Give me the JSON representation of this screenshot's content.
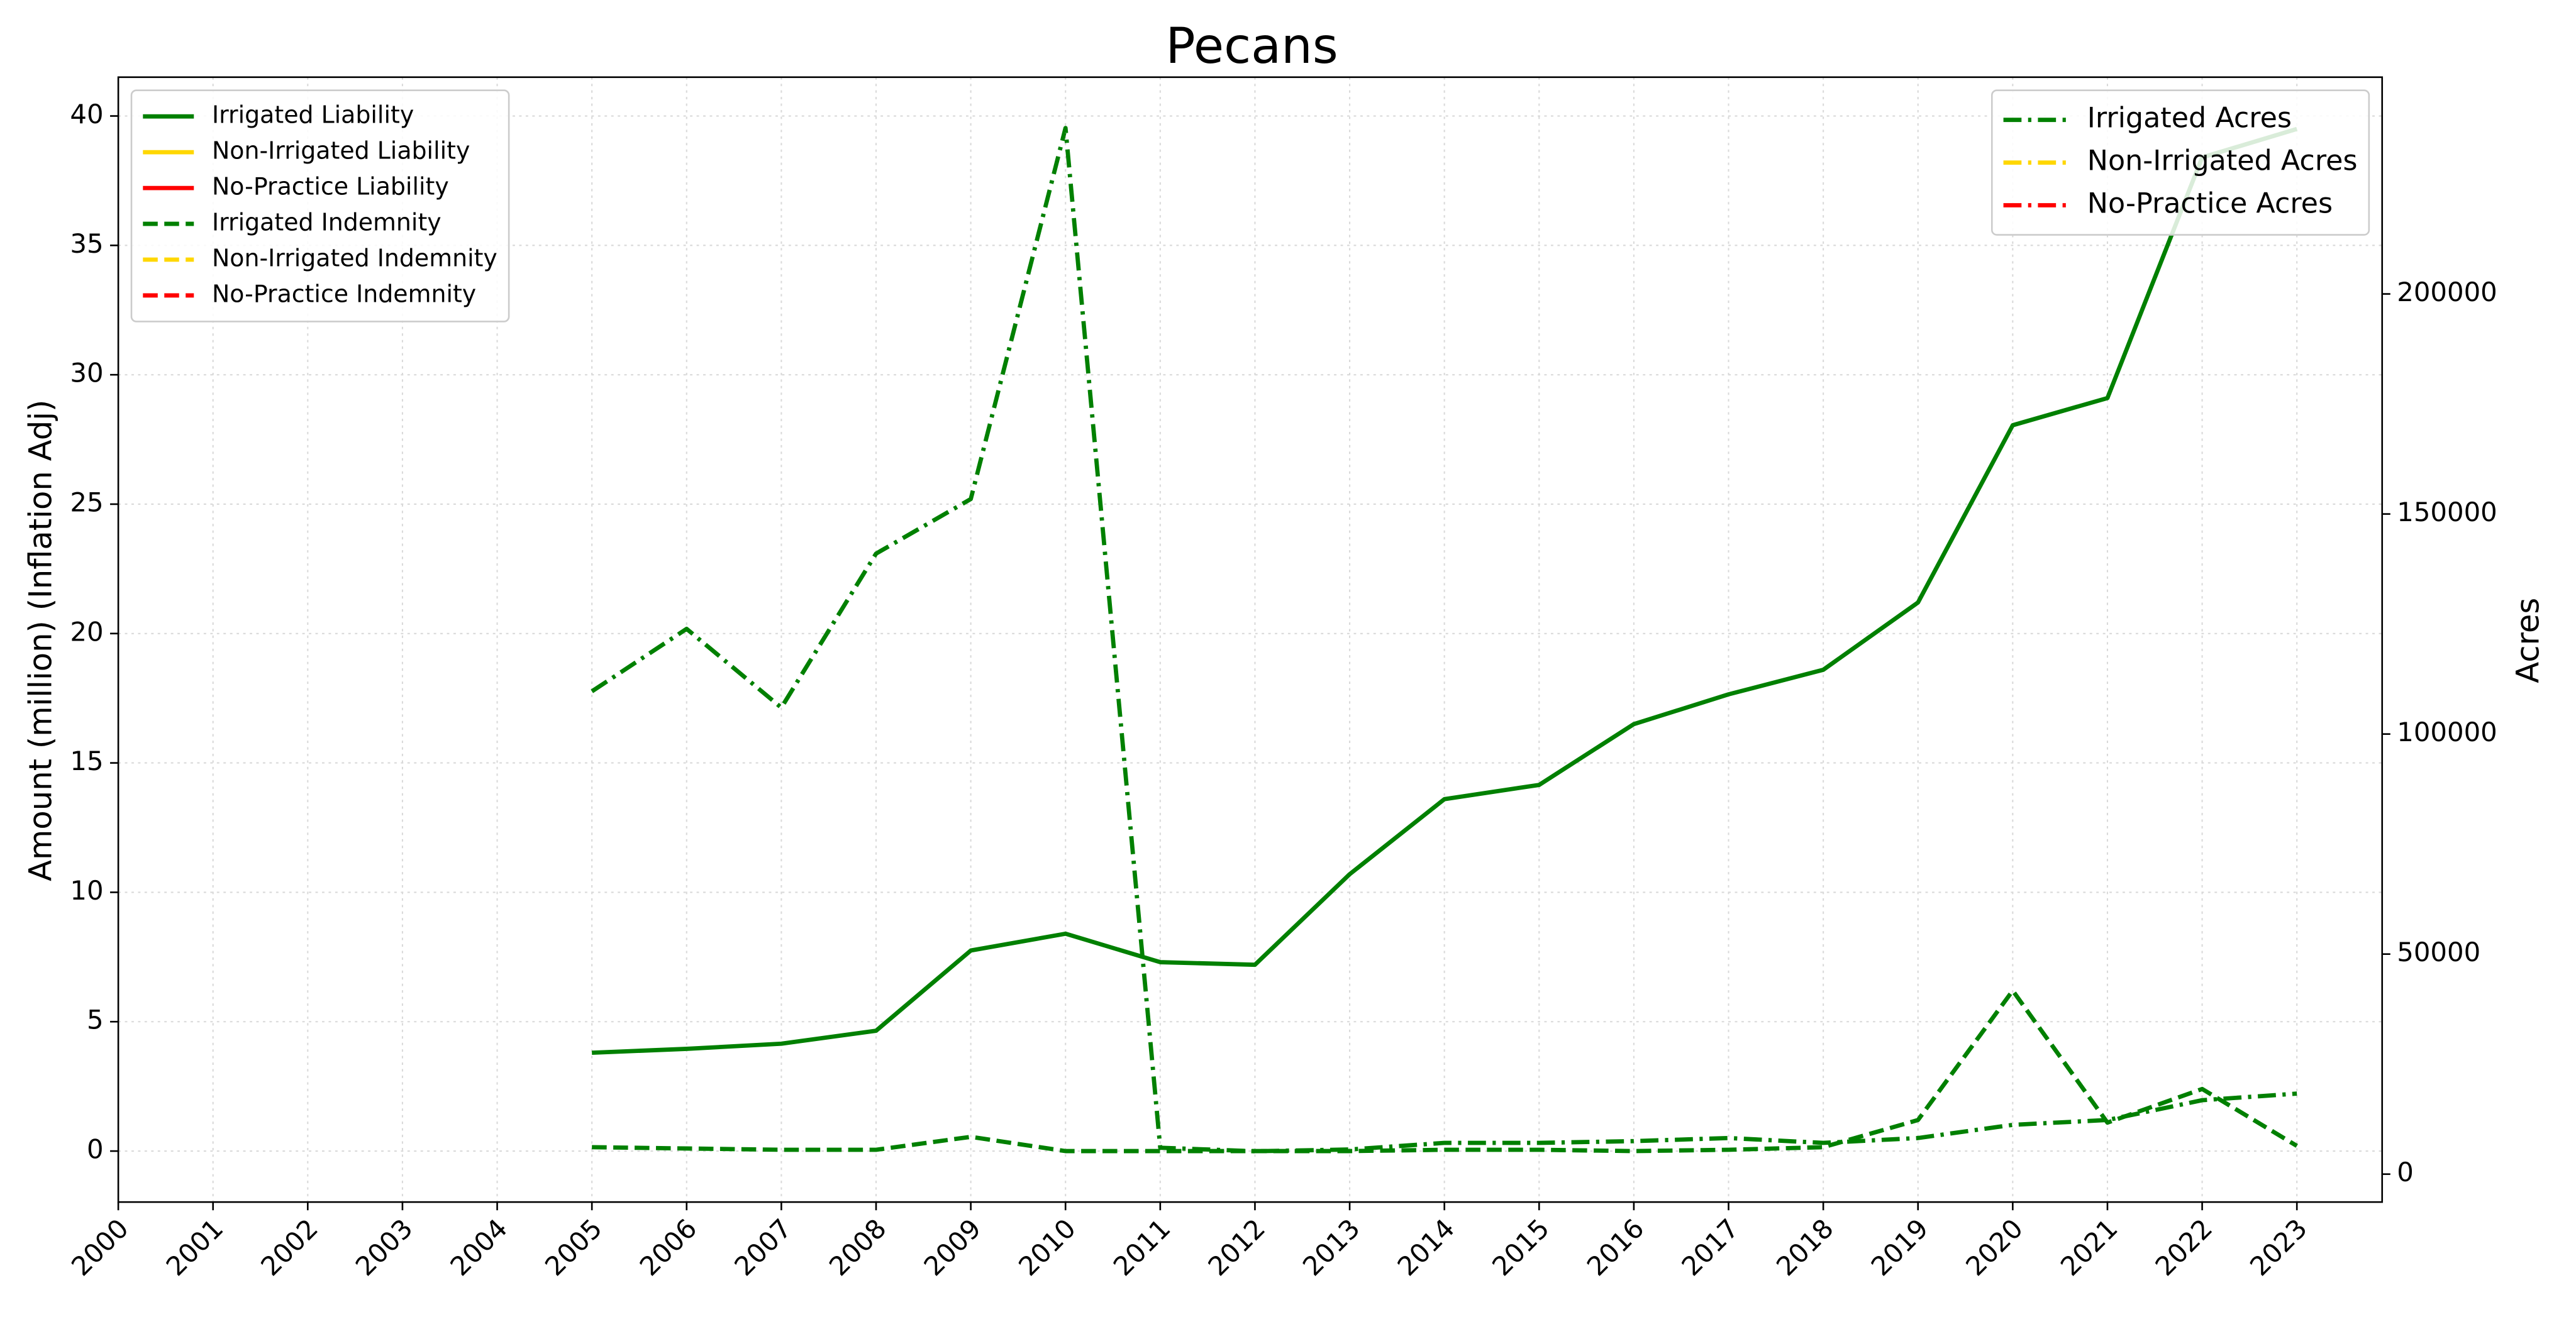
{
  "chart_data": {
    "type": "line",
    "title": "Pecans",
    "ylabel": "Amount (million) (Inflation Adj)",
    "y2label": "Acres",
    "x": [
      2000,
      2001,
      2002,
      2003,
      2004,
      2005,
      2006,
      2007,
      2008,
      2009,
      2010,
      2011,
      2012,
      2013,
      2014,
      2015,
      2016,
      2017,
      2018,
      2019,
      2020,
      2021,
      2022,
      2023
    ],
    "xlim": [
      2000,
      2023.9
    ],
    "xticks": [
      2000,
      2001,
      2002,
      2003,
      2004,
      2005,
      2006,
      2007,
      2008,
      2009,
      2010,
      2011,
      2012,
      2013,
      2014,
      2015,
      2016,
      2017,
      2018,
      2019,
      2020,
      2021,
      2022,
      2023
    ],
    "ylim": [
      -1.97,
      41.5
    ],
    "yticks": [
      0,
      5,
      10,
      15,
      20,
      25,
      30,
      35,
      40
    ],
    "y2lim": [
      -6343,
      249254
    ],
    "y2ticks": [
      0,
      50000,
      100000,
      150000,
      200000
    ],
    "grid": true,
    "legend": "upper left",
    "y2_legend": "upper right",
    "series": [
      {
        "name": "Irrigated Liability",
        "color": "#008000",
        "linestyle": "solid",
        "values": [
          null,
          null,
          null,
          null,
          null,
          3.8,
          3.95,
          4.15,
          4.65,
          7.75,
          8.4,
          7.3,
          7.2,
          10.7,
          13.6,
          14.15,
          16.5,
          17.65,
          18.6,
          21.2,
          28.05,
          29.1,
          38.4,
          39.5
        ]
      },
      {
        "name": "Non-Irrigated Liability",
        "color": "#ffd700",
        "linestyle": "solid",
        "values": [
          null,
          null,
          null,
          null,
          null,
          null,
          null,
          null,
          null,
          null,
          null,
          null,
          null,
          null,
          null,
          null,
          null,
          null,
          null,
          null,
          null,
          null,
          null,
          null
        ]
      },
      {
        "name": "No-Practice Liability",
        "color": "#ff0000",
        "linestyle": "solid",
        "values": [
          null,
          null,
          null,
          null,
          null,
          null,
          null,
          null,
          null,
          null,
          null,
          null,
          null,
          null,
          null,
          null,
          null,
          null,
          null,
          null,
          null,
          null,
          null,
          null
        ]
      },
      {
        "name": "Irrigated Indemnity",
        "color": "#008000",
        "linestyle": "dashed",
        "values": [
          null,
          null,
          null,
          null,
          null,
          0.15,
          0.1,
          0.05,
          0.05,
          0.55,
          0.0,
          0.0,
          0.0,
          0.0,
          0.05,
          0.05,
          0.0,
          0.05,
          0.15,
          1.2,
          6.2,
          1.1,
          2.4,
          0.2
        ]
      },
      {
        "name": "Non-Irrigated Indemnity",
        "color": "#ffd700",
        "linestyle": "dashed",
        "values": [
          null,
          null,
          null,
          null,
          null,
          null,
          null,
          null,
          null,
          null,
          null,
          null,
          null,
          null,
          null,
          null,
          null,
          null,
          null,
          null,
          null,
          null,
          null,
          null
        ]
      },
      {
        "name": "No-Practice Indemnity",
        "color": "#ff0000",
        "linestyle": "dashed",
        "values": [
          null,
          null,
          null,
          null,
          null,
          null,
          null,
          null,
          null,
          null,
          null,
          null,
          null,
          null,
          null,
          null,
          null,
          null,
          null,
          null,
          null,
          null,
          null,
          null
        ]
      },
      {
        "name": "Irrigated Acres",
        "color": "#008000",
        "linestyle": "dashdot",
        "axis": "y2",
        "values": [
          null,
          null,
          null,
          null,
          null,
          109700,
          123900,
          106000,
          141000,
          153400,
          237700,
          6000,
          5200,
          5600,
          7100,
          7100,
          7500,
          8200,
          7100,
          8200,
          11200,
          12300,
          16800,
          18300
        ]
      },
      {
        "name": "Non-Irrigated Acres",
        "color": "#ffd700",
        "linestyle": "dashdot",
        "axis": "y2",
        "values": [
          null,
          null,
          null,
          null,
          null,
          null,
          null,
          null,
          null,
          null,
          null,
          null,
          null,
          null,
          null,
          null,
          null,
          null,
          null,
          null,
          null,
          null,
          null,
          null
        ]
      },
      {
        "name": "No-Practice Acres",
        "color": "#ff0000",
        "linestyle": "dashdot",
        "axis": "y2",
        "values": [
          null,
          null,
          null,
          null,
          null,
          null,
          null,
          null,
          null,
          null,
          null,
          null,
          null,
          null,
          null,
          null,
          null,
          null,
          null,
          null,
          null,
          null,
          null,
          null
        ]
      }
    ]
  }
}
